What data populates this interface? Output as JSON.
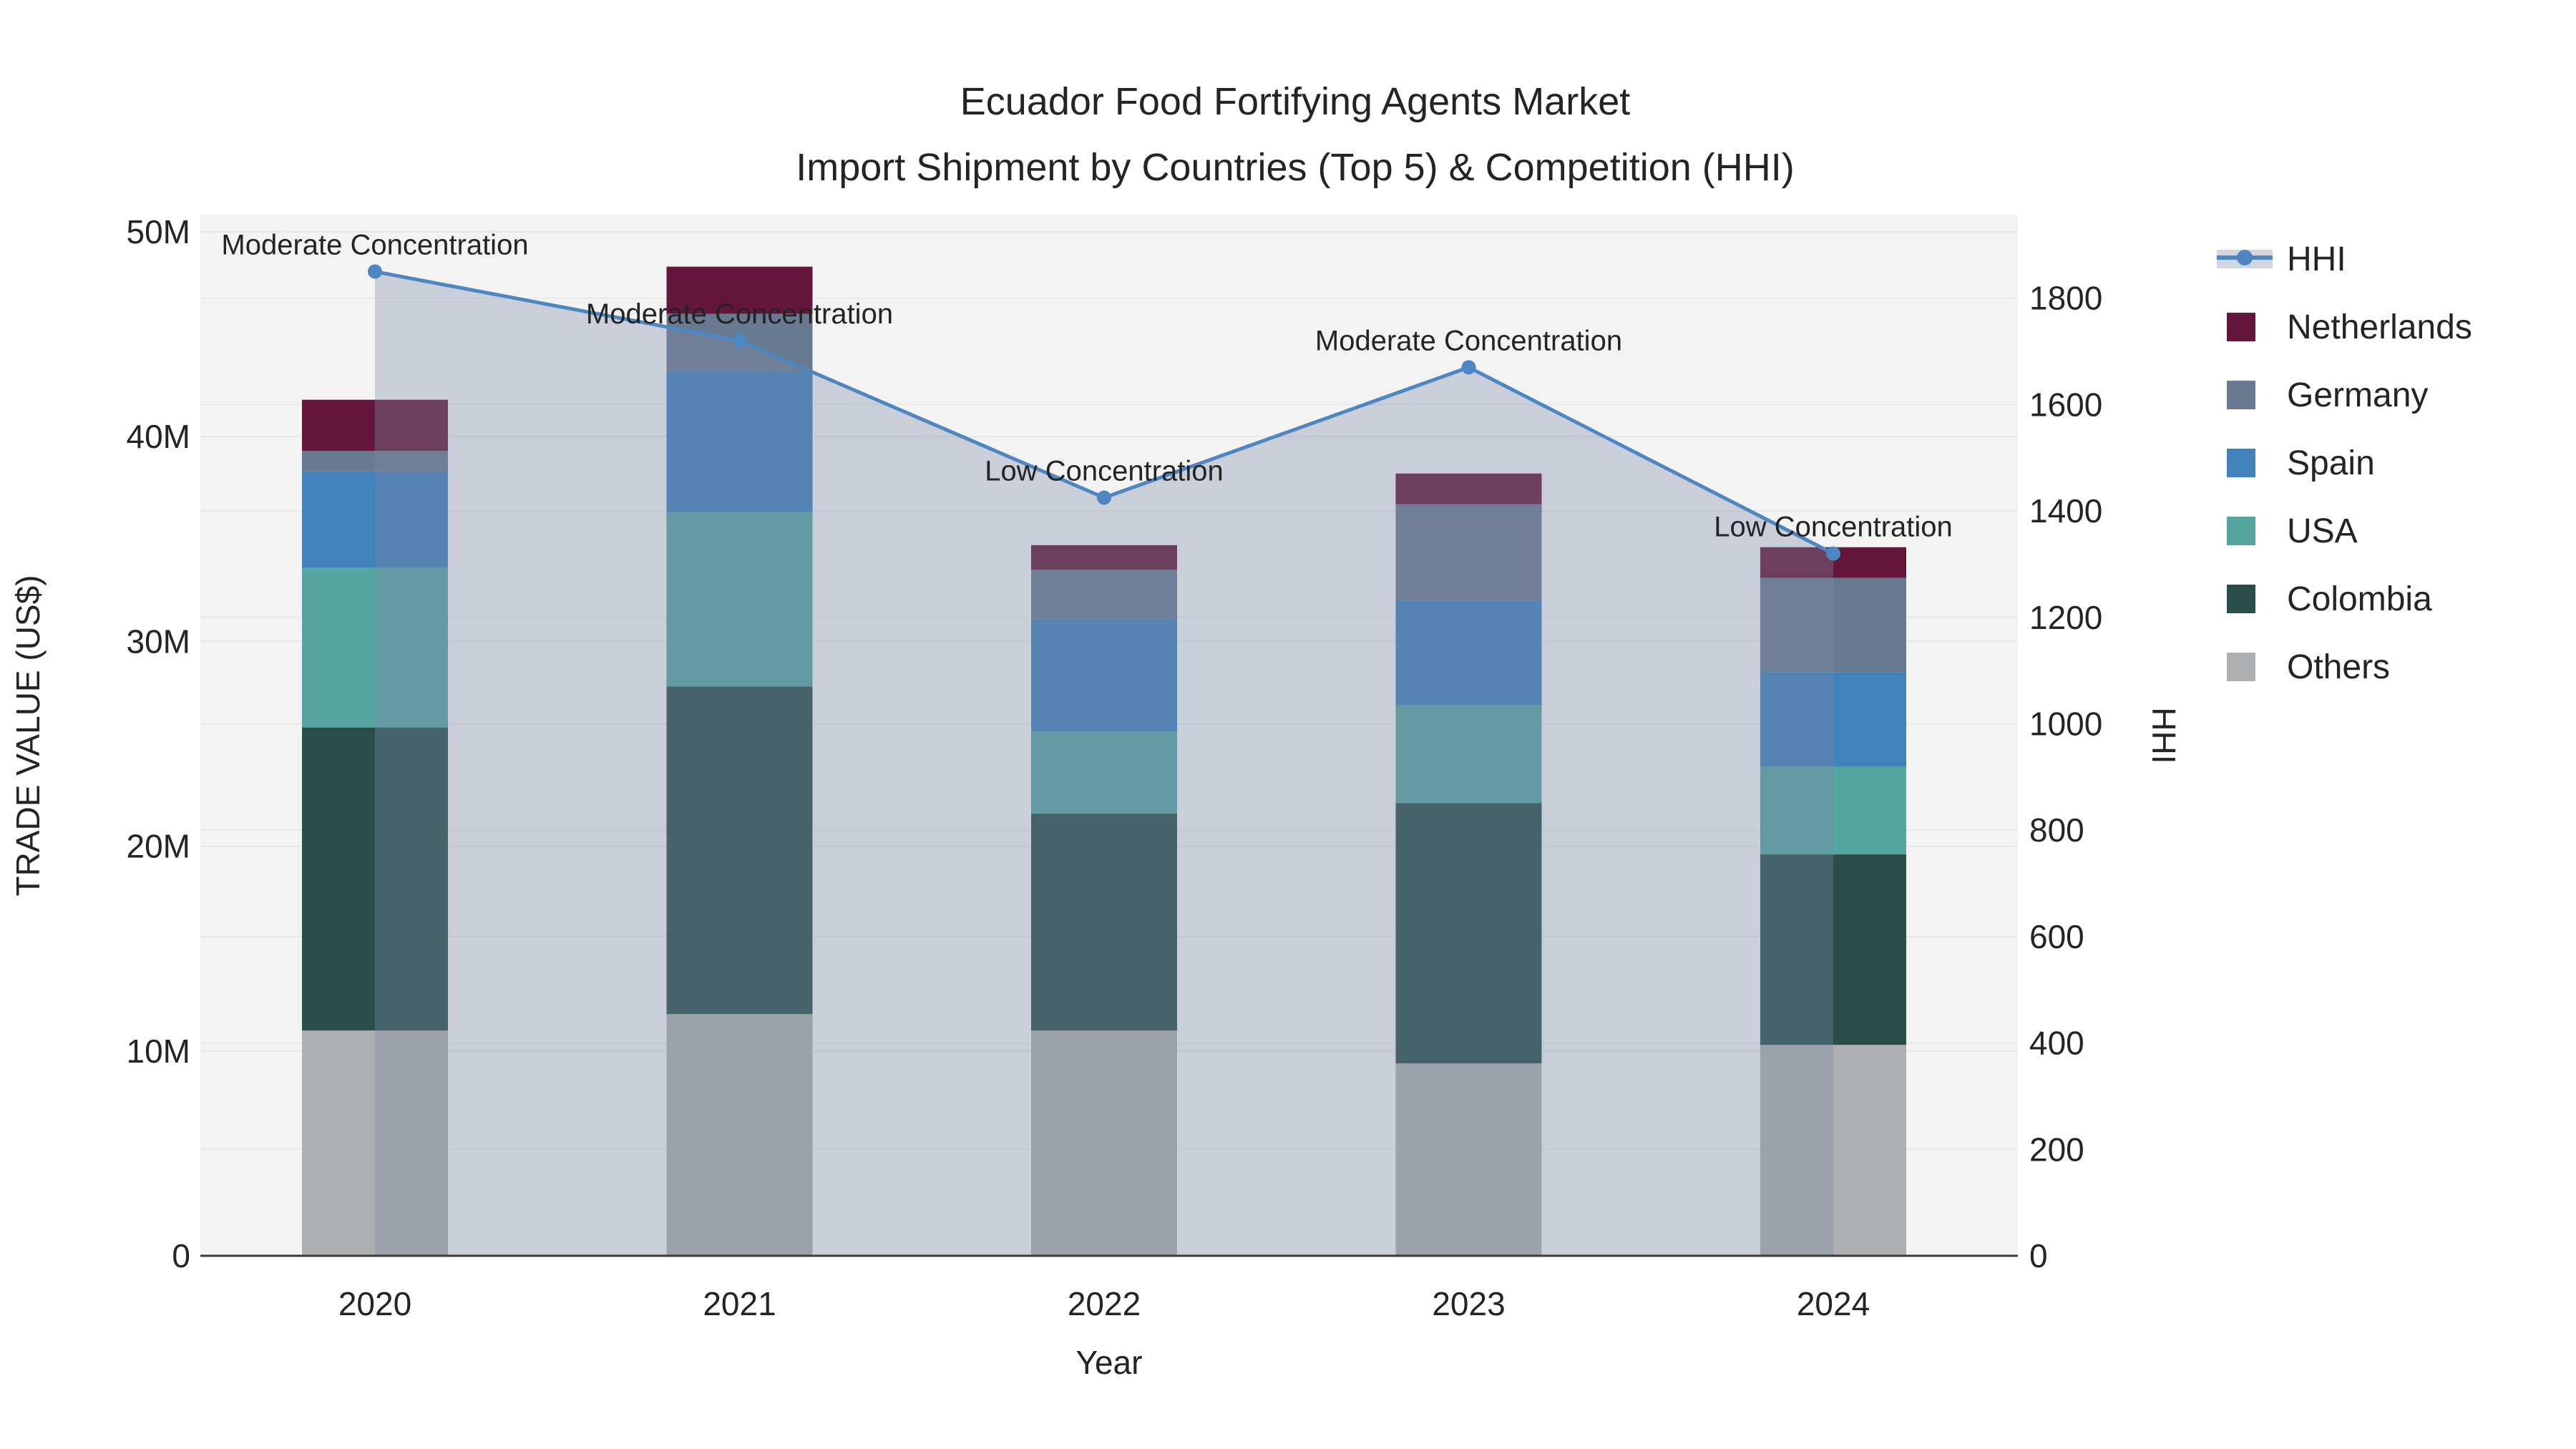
{
  "title": {
    "line1": "Ecuador Food Fortifying Agents Market",
    "line2": "Import Shipment by Countries (Top 5) & Competition (HHI)"
  },
  "axes": {
    "x": {
      "title": "Year",
      "ticks": [
        "2020",
        "2021",
        "2022",
        "2023",
        "2024"
      ]
    },
    "y_left": {
      "title": "TRADE VALUE (US$)",
      "ticks": [
        "0",
        "10M",
        "20M",
        "30M",
        "40M",
        "50M"
      ]
    },
    "y_right": {
      "title": "HHI",
      "ticks": [
        "0",
        "200",
        "400",
        "600",
        "800",
        "1000",
        "1200",
        "1400",
        "1600",
        "1800"
      ]
    }
  },
  "legend": {
    "items": [
      {
        "label": "HHI",
        "kind": "line",
        "color": "#4d86c0"
      },
      {
        "label": "Netherlands",
        "kind": "swatch",
        "color": "#64173a"
      },
      {
        "label": "Germany",
        "kind": "swatch",
        "color": "#687a90"
      },
      {
        "label": "Spain",
        "kind": "swatch",
        "color": "#4181bc"
      },
      {
        "label": "USA",
        "kind": "swatch",
        "color": "#55a5a1"
      },
      {
        "label": "Colombia",
        "kind": "swatch",
        "color": "#2a4d4a"
      },
      {
        "label": "Others",
        "kind": "swatch",
        "color": "#aeafb0"
      }
    ]
  },
  "chart_data": {
    "type": "combo-stacked-bar-line",
    "categories": [
      "2020",
      "2021",
      "2022",
      "2023",
      "2024"
    ],
    "bar_unit": "million US$",
    "series": [
      {
        "name": "Others",
        "type": "bar",
        "color": "#aeafb0",
        "values": [
          11.0,
          11.8,
          11.0,
          9.4,
          10.3
        ]
      },
      {
        "name": "Colombia",
        "type": "bar",
        "color": "#2a4d4a",
        "values": [
          14.8,
          16.0,
          10.6,
          12.7,
          9.3
        ]
      },
      {
        "name": "USA",
        "type": "bar",
        "color": "#55a5a1",
        "values": [
          7.8,
          8.5,
          4.0,
          4.8,
          4.3
        ]
      },
      {
        "name": "Spain",
        "type": "bar",
        "color": "#4181bc",
        "values": [
          4.7,
          6.9,
          5.5,
          5.1,
          4.6
        ]
      },
      {
        "name": "Germany",
        "type": "bar",
        "color": "#687a90",
        "values": [
          1.0,
          2.8,
          2.4,
          4.7,
          4.6
        ]
      },
      {
        "name": "Netherlands",
        "type": "bar",
        "color": "#64173a",
        "values": [
          2.5,
          2.3,
          1.2,
          1.5,
          1.5
        ]
      }
    ],
    "bar_totals": [
      41.8,
      48.3,
      34.7,
      38.2,
      34.6
    ],
    "line_series": {
      "name": "HHI",
      "type": "line+area",
      "color": "#4d86c0",
      "area_color": "rgba(122,138,167,0.35)",
      "values": [
        1850,
        1720,
        1425,
        1670,
        1320
      ]
    },
    "annotations": [
      "Moderate Concentration",
      "Moderate Concentration",
      "Low Concentration",
      "Moderate Concentration",
      "Low Concentration"
    ],
    "title": "Ecuador Food Fortifying Agents Market — Import Shipment by Countries (Top 5) & Competition (HHI)",
    "xlabel": "Year",
    "ylabel_left": "TRADE VALUE (US$)",
    "ylabel_right": "HHI",
    "ylim_left": [
      0,
      50900000
    ],
    "ylim_right": [
      0,
      1957
    ],
    "grid": true,
    "legend_position": "right"
  },
  "style": {
    "plot_bg": "#f3f3f3",
    "grid_color": "#e6e6e6",
    "axis_line_color": "#3a3a3a",
    "text_color": "#242424"
  }
}
